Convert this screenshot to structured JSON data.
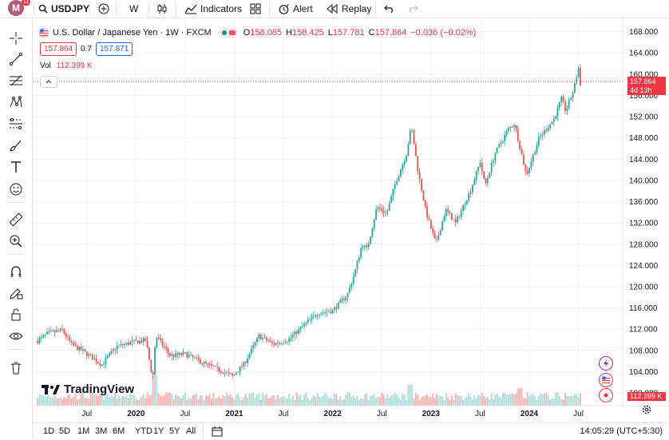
{
  "topbar": {
    "logo_letter": "M",
    "logo_badge": "11",
    "symbol": "USDJPY",
    "add_symbol": "+",
    "interval": "W",
    "indicators_label": "Indicators",
    "alert_label": "Alert",
    "replay_label": "Replay"
  },
  "legend": {
    "title": "U.S. Dollar / Japanese Yen · 1W · FXCM",
    "o_label": "O",
    "o": "158.085",
    "h_label": "H",
    "h": "158.425",
    "l_label": "L",
    "l": "157.781",
    "c_label": "C",
    "c": "157.864",
    "change": "−0.036 (−0.02%)",
    "bid": "157.864",
    "spread": "0.7",
    "ask": "157.871",
    "vol_label": "Vol",
    "vol_value": "112.399 K"
  },
  "price_tag": {
    "value": "157.864",
    "countdown": "4d 13h"
  },
  "volume_tag": "112.399 K",
  "watermark": "TradingView",
  "bottombar": {
    "ranges": [
      "1D",
      "5D",
      "1M",
      "3M",
      "6M",
      "YTD",
      "1Y",
      "5Y",
      "All"
    ],
    "clock": "14:05:29 (UTC+5:30)"
  },
  "colors": {
    "up": "#26a69a",
    "down": "#ef5350",
    "accent": "#2962ff"
  },
  "chart_data": {
    "type": "candlestick",
    "symbol": "USDJPY",
    "interval": "1W",
    "y_ticks": [
      100.0,
      104.0,
      108.0,
      112.0,
      116.0,
      120.0,
      124.0,
      128.0,
      132.0,
      136.0,
      140.0,
      144.0,
      148.0,
      152.0,
      156.0,
      160.0,
      164.0,
      168.0
    ],
    "y_tick_labels": [
      "100.000",
      "104.000",
      "108.000",
      "112.000",
      "116.000",
      "120.000",
      "124.000",
      "128.000",
      "132.000",
      "136.000",
      "140.000",
      "144.000",
      "148.000",
      "152.000",
      "156.000",
      "160.000",
      "164.000",
      "168.000"
    ],
    "ylim": [
      97.6,
      170.5
    ],
    "x_ticks": [
      {
        "label": "Jul",
        "t": 2019.5
      },
      {
        "label": "2020",
        "t": 2020.0
      },
      {
        "label": "Jul",
        "t": 2020.5
      },
      {
        "label": "2021",
        "t": 2021.0
      },
      {
        "label": "Jul",
        "t": 2021.5
      },
      {
        "label": "2022",
        "t": 2022.0
      },
      {
        "label": "Jul",
        "t": 2022.5
      },
      {
        "label": "2023",
        "t": 2023.0
      },
      {
        "label": "Jul",
        "t": 2023.5
      },
      {
        "label": "2024",
        "t": 2024.0
      },
      {
        "label": "Jul",
        "t": 2024.5
      }
    ],
    "xlim": [
      2018.95,
      2024.95
    ],
    "close_path": [
      [
        2019.0,
        109.8
      ],
      [
        2019.1,
        111.2
      ],
      [
        2019.25,
        111.8
      ],
      [
        2019.35,
        109.0
      ],
      [
        2019.45,
        108.0
      ],
      [
        2019.6,
        106.0
      ],
      [
        2019.65,
        105.3
      ],
      [
        2019.8,
        108.7
      ],
      [
        2019.95,
        109.5
      ],
      [
        2020.1,
        109.9
      ],
      [
        2020.17,
        102.5
      ],
      [
        2020.2,
        110.8
      ],
      [
        2020.35,
        107.0
      ],
      [
        2020.5,
        107.3
      ],
      [
        2020.7,
        105.5
      ],
      [
        2020.9,
        103.9
      ],
      [
        2020.98,
        103.1
      ],
      [
        2021.1,
        105.5
      ],
      [
        2021.25,
        110.7
      ],
      [
        2021.4,
        109.2
      ],
      [
        2021.55,
        110.0
      ],
      [
        2021.75,
        113.5
      ],
      [
        2021.85,
        115.0
      ],
      [
        2022.0,
        115.5
      ],
      [
        2022.15,
        118.5
      ],
      [
        2022.22,
        122.4
      ],
      [
        2022.3,
        128.0
      ],
      [
        2022.35,
        127.0
      ],
      [
        2022.45,
        135.0
      ],
      [
        2022.55,
        133.8
      ],
      [
        2022.63,
        139.0
      ],
      [
        2022.75,
        145.0
      ],
      [
        2022.8,
        150.2
      ],
      [
        2022.87,
        141.5
      ],
      [
        2022.95,
        134.0
      ],
      [
        2023.05,
        128.0
      ],
      [
        2023.15,
        134.5
      ],
      [
        2023.25,
        132.0
      ],
      [
        2023.4,
        138.0
      ],
      [
        2023.5,
        143.5
      ],
      [
        2023.55,
        139.0
      ],
      [
        2023.65,
        145.0
      ],
      [
        2023.78,
        149.5
      ],
      [
        2023.85,
        150.7
      ],
      [
        2023.92,
        145.0
      ],
      [
        2023.97,
        141.0
      ],
      [
        2024.1,
        148.0
      ],
      [
        2024.25,
        151.5
      ],
      [
        2024.33,
        155.5
      ],
      [
        2024.37,
        153.0
      ],
      [
        2024.45,
        157.0
      ],
      [
        2024.5,
        161.2
      ],
      [
        2024.53,
        157.864
      ]
    ],
    "last_price": 157.864,
    "volume_label": "112.399 K"
  }
}
